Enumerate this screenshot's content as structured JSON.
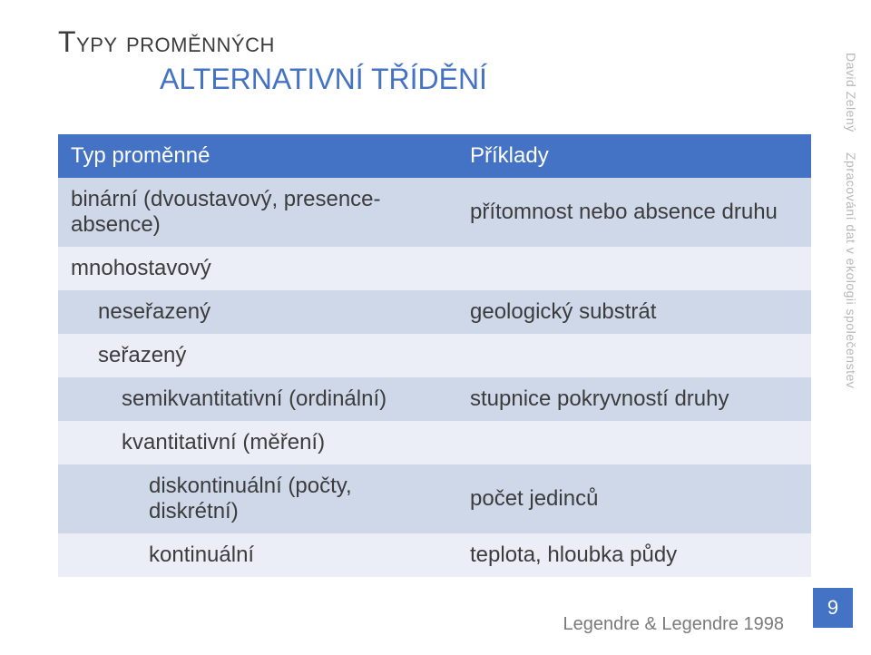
{
  "title_main": "Typy proměnných",
  "title_sub": "ALTERNATIVNÍ TŘÍDĚNÍ",
  "table": {
    "header": {
      "left": "Typ proměnné",
      "right": "Příklady"
    },
    "rows": [
      {
        "left": "binární (dvoustavový, presence-absence)",
        "right": "přítomnost nebo absence druhu",
        "band": "light",
        "indent": 0
      },
      {
        "left": "mnohostavový",
        "right": "",
        "band": "dark",
        "indent": 0
      },
      {
        "left": "neseřazený",
        "right": "geologický substrát",
        "band": "light",
        "indent": 1
      },
      {
        "left": "seřazený",
        "right": "",
        "band": "dark",
        "indent": 1
      },
      {
        "left": "semikvantitativní (ordinální)",
        "right": "stupnice pokryvností druhy",
        "band": "light",
        "indent": 2
      },
      {
        "left": "kvantitativní (měření)",
        "right": "",
        "band": "dark",
        "indent": 2
      },
      {
        "left": "diskontinuální (počty, diskrétní)",
        "right": "počet jedinců",
        "band": "light",
        "indent": 3
      },
      {
        "left": "kontinuální",
        "right": "teplota, hloubka půdy",
        "band": "dark",
        "indent": 3
      }
    ]
  },
  "side_author": "David Zelený",
  "side_course": "Zpracování dat v ekologii společenstev",
  "citation": "Legendre & Legendre 1998",
  "page_number": "9",
  "colors": {
    "accent": "#4472c4",
    "band_light": "#cfd8e9",
    "band_dark": "#ebeef6",
    "text": "#3c3c3c",
    "muted": "#b7b7b7",
    "citation": "#7a7a7a",
    "background": "#ffffff"
  }
}
